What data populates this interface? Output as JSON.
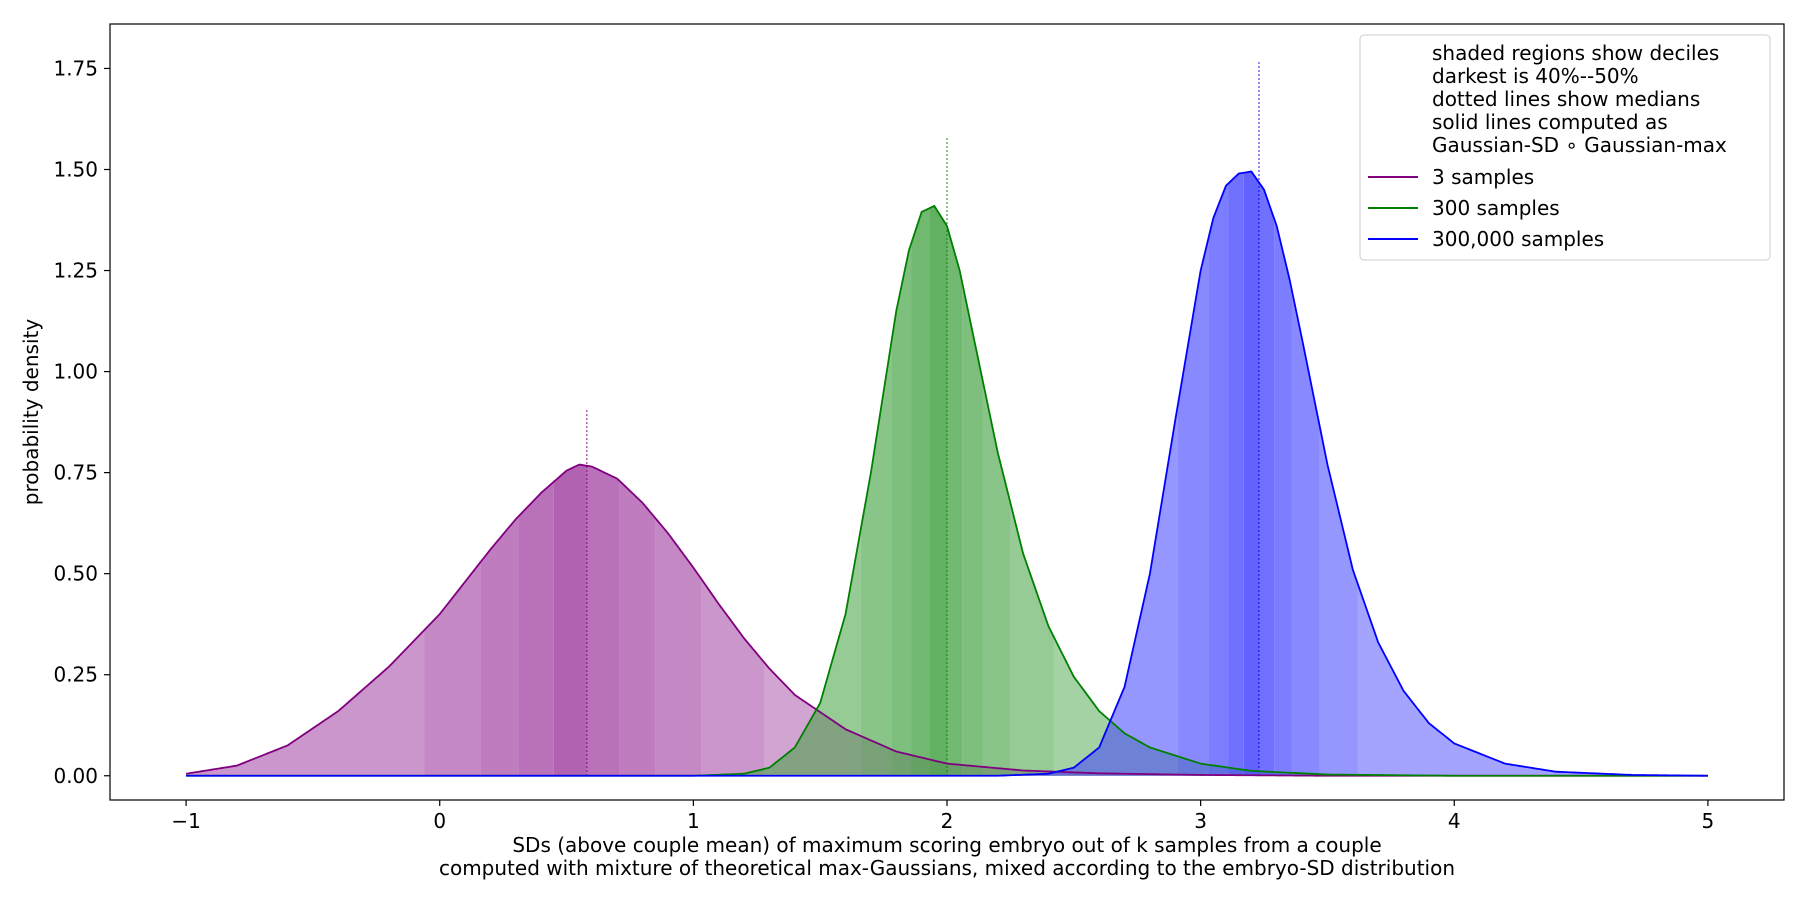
{
  "chart_data": {
    "type": "area",
    "title": "",
    "xlabel_lines": [
      "SDs (above couple mean) of maximum scoring embryo out of k samples from a couple",
      "computed with mixture of theoretical max-Gaussians, mixed according to the embryo-SD distribution"
    ],
    "ylabel": "probability density",
    "xlim": [
      -1.3,
      5.3
    ],
    "ylim": [
      -0.06,
      1.86
    ],
    "xticks": [
      -1,
      0,
      1,
      2,
      3,
      4,
      5
    ],
    "xtick_labels": [
      "−1",
      "0",
      "1",
      "2",
      "3",
      "4",
      "5"
    ],
    "yticks": [
      0.0,
      0.25,
      0.5,
      0.75,
      1.0,
      1.25,
      1.5,
      1.75
    ],
    "ytick_labels": [
      "0.00",
      "0.25",
      "0.50",
      "0.75",
      "1.00",
      "1.25",
      "1.50",
      "1.75"
    ],
    "legend_position": "top-right",
    "legend_notes": [
      "shaded regions show deciles",
      "darkest is 40%--50%",
      "dotted lines show medians",
      "solid lines computed as",
      "Gaussian-SD ∘ Gaussian-max"
    ],
    "series": [
      {
        "name": "3 samples",
        "color": "#800080",
        "fill": "#a040a0",
        "median": 0.58,
        "median_line_top": 0.91,
        "deciles": [
          -0.06,
          0.16,
          0.31,
          0.45,
          0.58,
          0.71,
          0.85,
          1.03,
          1.28
        ],
        "x": [
          -1.0,
          -0.8,
          -0.6,
          -0.4,
          -0.2,
          0.0,
          0.1,
          0.2,
          0.3,
          0.4,
          0.5,
          0.55,
          0.6,
          0.7,
          0.8,
          0.9,
          1.0,
          1.1,
          1.2,
          1.3,
          1.4,
          1.6,
          1.8,
          2.0,
          2.3,
          2.6,
          3.0,
          3.5,
          4.0,
          5.0
        ],
        "y": [
          0.005,
          0.025,
          0.075,
          0.16,
          0.27,
          0.4,
          0.48,
          0.56,
          0.635,
          0.7,
          0.755,
          0.77,
          0.765,
          0.735,
          0.675,
          0.6,
          0.515,
          0.425,
          0.34,
          0.265,
          0.2,
          0.115,
          0.06,
          0.03,
          0.013,
          0.006,
          0.002,
          0.0,
          0.0,
          0.0
        ]
      },
      {
        "name": "300 samples",
        "color": "#008000",
        "fill": "#40a040",
        "median": 2.0,
        "median_line_top": 1.58,
        "deciles": [
          1.66,
          1.78,
          1.86,
          1.93,
          2.0,
          2.06,
          2.14,
          2.25,
          2.42
        ],
        "x": [
          -1.0,
          1.0,
          1.2,
          1.3,
          1.4,
          1.5,
          1.6,
          1.7,
          1.75,
          1.8,
          1.85,
          1.9,
          1.95,
          2.0,
          2.05,
          2.1,
          2.2,
          2.3,
          2.4,
          2.5,
          2.6,
          2.7,
          2.8,
          3.0,
          3.2,
          3.5,
          4.0,
          5.0
        ],
        "y": [
          0.0,
          0.0,
          0.005,
          0.02,
          0.07,
          0.18,
          0.4,
          0.75,
          0.95,
          1.15,
          1.3,
          1.395,
          1.41,
          1.36,
          1.25,
          1.1,
          0.8,
          0.55,
          0.37,
          0.245,
          0.16,
          0.105,
          0.07,
          0.03,
          0.012,
          0.003,
          0.0,
          0.0
        ]
      },
      {
        "name": "300,000 samples",
        "color": "#0000ff",
        "fill": "#4040ff",
        "median": 3.23,
        "median_line_top": 1.765,
        "deciles": [
          2.91,
          3.03,
          3.11,
          3.17,
          3.23,
          3.29,
          3.36,
          3.47,
          3.62
        ],
        "x": [
          -1.0,
          2.2,
          2.4,
          2.5,
          2.6,
          2.7,
          2.8,
          2.9,
          3.0,
          3.05,
          3.1,
          3.15,
          3.2,
          3.25,
          3.3,
          3.35,
          3.4,
          3.5,
          3.6,
          3.7,
          3.8,
          3.9,
          4.0,
          4.2,
          4.4,
          4.7,
          5.0
        ],
        "y": [
          0.0,
          0.0,
          0.005,
          0.02,
          0.07,
          0.22,
          0.5,
          0.88,
          1.25,
          1.38,
          1.46,
          1.49,
          1.495,
          1.45,
          1.36,
          1.23,
          1.08,
          0.77,
          0.51,
          0.33,
          0.21,
          0.13,
          0.08,
          0.03,
          0.01,
          0.002,
          0.0
        ]
      }
    ]
  }
}
